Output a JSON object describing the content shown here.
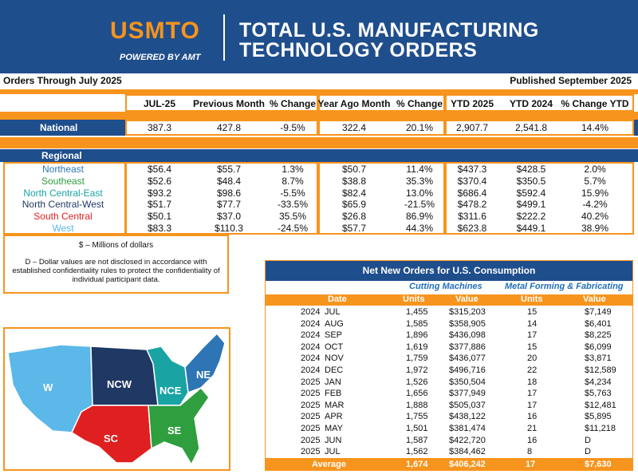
{
  "header": {
    "logo": "USMTO",
    "logo_sub": "POWERED BY AMT",
    "title_line1": "TOTAL U.S. MANUFACTURING",
    "title_line2": "TECHNOLOGY ORDERS",
    "bg_color": "#1f4e8c",
    "accent_color": "#f7941d"
  },
  "subheader": {
    "left": "Orders Through July 2025",
    "right": "Published September 2025"
  },
  "columns": [
    "JUL-25",
    "Previous Month",
    "% Change",
    "Year Ago Month",
    "% Change",
    "YTD 2025",
    "YTD 2024",
    "% Change YTD"
  ],
  "national": {
    "label": "National",
    "values": [
      "387.3",
      "427.8",
      "-9.5%",
      "322.4",
      "20.1%",
      "2,907.7",
      "2,541.8",
      "14.4%"
    ]
  },
  "regional": {
    "label": "Regional",
    "rows": [
      {
        "name": "Northeast",
        "color": "#2e75b6",
        "values": [
          "$56.4",
          "$55.7",
          "1.3%",
          "$50.7",
          "11.4%",
          "$437.3",
          "$428.5",
          "2.0%"
        ]
      },
      {
        "name": "Southeast",
        "color": "#2e9e3e",
        "values": [
          "$52.6",
          "$48.4",
          "8.7%",
          "$38.8",
          "35.3%",
          "$370.4",
          "$350.5",
          "5.7%"
        ]
      },
      {
        "name": "North Central-East",
        "color": "#1aa3a3",
        "values": [
          "$93.2",
          "$98.6",
          "-5.5%",
          "$82.4",
          "13.0%",
          "$686.4",
          "$592.4",
          "15.9%"
        ]
      },
      {
        "name": "North Central-West",
        "color": "#1f3864",
        "values": [
          "$51.7",
          "$77.7",
          "-33.5%",
          "$65.9",
          "-21.5%",
          "$478.2",
          "$499.1",
          "-4.2%"
        ]
      },
      {
        "name": "South Central",
        "color": "#e02020",
        "values": [
          "$50.1",
          "$37.0",
          "35.5%",
          "$26.8",
          "86.9%",
          "$311.6",
          "$222.2",
          "40.2%"
        ]
      },
      {
        "name": "West",
        "color": "#5bb8e8",
        "values": [
          "$83.3",
          "$110.3",
          "-24.5%",
          "$57.7",
          "44.3%",
          "$623.8",
          "$449.1",
          "38.9%"
        ]
      }
    ]
  },
  "notes": {
    "units": "$ – Millions of dollars",
    "disclosure": "D – Dollar values are not disclosed in accordance with established confidentiality rules to protect the confidentiality of individual participant data."
  },
  "map": {
    "labels": [
      "W",
      "NCW",
      "NCE",
      "NE",
      "SC",
      "SE"
    ]
  },
  "net_new": {
    "title": "Net New Orders for U.S. Consumption",
    "group1": "Cutting Machines",
    "group2": "Metal Forming & Fabricating",
    "col_date": "Date",
    "col_units": "Units",
    "col_value": "Value",
    "rows": [
      {
        "year": "2024",
        "month": "JUL",
        "cu": "1,455",
        "cv": "$315,203",
        "mu": "15",
        "mv": "$7,149"
      },
      {
        "year": "2024",
        "month": "AUG",
        "cu": "1,585",
        "cv": "$358,905",
        "mu": "14",
        "mv": "$6,401"
      },
      {
        "year": "2024",
        "month": "SEP",
        "cu": "1,896",
        "cv": "$436,098",
        "mu": "17",
        "mv": "$8,225"
      },
      {
        "year": "2024",
        "month": "OCT",
        "cu": "1,619",
        "cv": "$377,886",
        "mu": "15",
        "mv": "$6,099"
      },
      {
        "year": "2024",
        "month": "NOV",
        "cu": "1,759",
        "cv": "$436,077",
        "mu": "20",
        "mv": "$3,871"
      },
      {
        "year": "2024",
        "month": "DEC",
        "cu": "1,972",
        "cv": "$496,716",
        "mu": "22",
        "mv": "$12,589"
      },
      {
        "year": "2025",
        "month": "JAN",
        "cu": "1,526",
        "cv": "$350,504",
        "mu": "18",
        "mv": "$4,234"
      },
      {
        "year": "2025",
        "month": "FEB",
        "cu": "1,656",
        "cv": "$377,949",
        "mu": "17",
        "mv": "$5,763"
      },
      {
        "year": "2025",
        "month": "MAR",
        "cu": "1,888",
        "cv": "$505,037",
        "mu": "17",
        "mv": "$12,481"
      },
      {
        "year": "2025",
        "month": "APR",
        "cu": "1,755",
        "cv": "$438,122",
        "mu": "16",
        "mv": "$5,895"
      },
      {
        "year": "2025",
        "month": "MAY",
        "cu": "1,501",
        "cv": "$381,474",
        "mu": "21",
        "mv": "$11,218"
      },
      {
        "year": "2025",
        "month": "JUN",
        "cu": "1,587",
        "cv": "$422,720",
        "mu": "16",
        "mv": "D"
      },
      {
        "year": "2025",
        "month": "JUL",
        "cu": "1,562",
        "cv": "$384,462",
        "mu": "8",
        "mv": "D"
      }
    ],
    "average": {
      "label": "Average",
      "cu": "1,674",
      "cv": "$406,242",
      "mu": "17",
      "mv": "$7,630"
    }
  }
}
